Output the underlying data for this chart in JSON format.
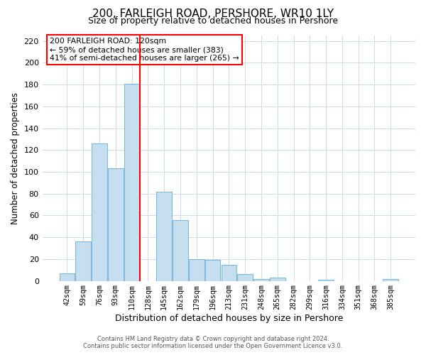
{
  "title": "200, FARLEIGH ROAD, PERSHORE, WR10 1LY",
  "subtitle": "Size of property relative to detached houses in Pershore",
  "xlabel": "Distribution of detached houses by size in Pershore",
  "ylabel": "Number of detached properties",
  "bar_labels": [
    "42sqm",
    "59sqm",
    "76sqm",
    "93sqm",
    "110sqm",
    "128sqm",
    "145sqm",
    "162sqm",
    "179sqm",
    "196sqm",
    "213sqm",
    "231sqm",
    "248sqm",
    "265sqm",
    "282sqm",
    "299sqm",
    "316sqm",
    "334sqm",
    "351sqm",
    "368sqm",
    "385sqm"
  ],
  "bar_values": [
    7,
    36,
    126,
    103,
    181,
    0,
    82,
    56,
    20,
    19,
    15,
    6,
    2,
    3,
    0,
    0,
    1,
    0,
    0,
    0,
    2
  ],
  "bar_color": "#c5dff0",
  "bar_edgecolor": "#7fb9d8",
  "vline_color": "red",
  "vline_pos": 4.5,
  "ylim": [
    0,
    225
  ],
  "yticks": [
    0,
    20,
    40,
    60,
    80,
    100,
    120,
    140,
    160,
    180,
    200,
    220
  ],
  "annotation_title": "200 FARLEIGH ROAD: 120sqm",
  "annotation_line1": "← 59% of detached houses are smaller (383)",
  "annotation_line2": "41% of semi-detached houses are larger (265) →",
  "footnote1": "Contains HM Land Registry data © Crown copyright and database right 2024.",
  "footnote2": "Contains public sector information licensed under the Open Government Licence v3.0.",
  "background_color": "#ffffff",
  "grid_color": "#ccdde8",
  "figwidth": 6.0,
  "figheight": 5.0,
  "dpi": 100
}
